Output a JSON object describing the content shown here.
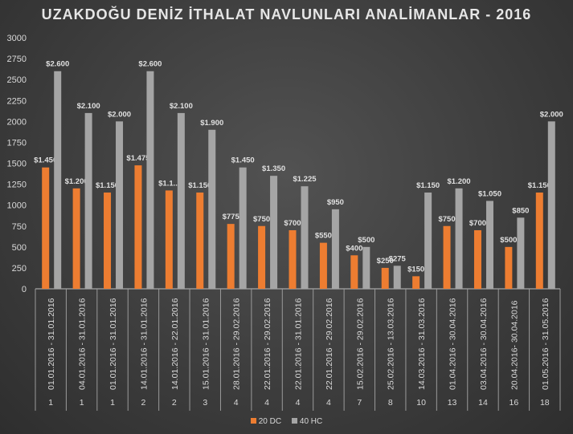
{
  "chart_data": {
    "type": "bar",
    "title": "UZAKDOĞU DENİZ İTHALAT NAVLUNLARI ANALİMANLAR - 2016",
    "ylim": [
      0,
      3000
    ],
    "yticks": [
      "0",
      "250",
      "500",
      "750",
      "1000",
      "1250",
      "1500",
      "1750",
      "2000",
      "2250",
      "2500",
      "2750",
      "3000"
    ],
    "categories": [
      "01.01.2016 - 31.01.2016",
      "04.01.2016 - 31.01.2016",
      "01.01.2016 - 31.01.2016",
      "14.01.2016 - 31.01.2016",
      "14.01.2016 - 22.01.2016",
      "15.01.2016 - 31.01.2016",
      "28.01.2016 - 29.02.2016",
      "22.01.2016 - 29.02.2016",
      "22.01.2016 - 31.01.2016",
      "22.01.2016 - 29.02.2016",
      "15.02.2016 - 29.02.2016",
      "25.02.2016 - 13.03.2016",
      "14.03.2016 - 31.03.2016",
      "01.04.2016 - 30.04.2016",
      "03.04.2016 - 30.04.2016",
      "20.04.2016- 30.04.2016",
      "01.05.2016 - 31.05.2016"
    ],
    "groups": [
      "1",
      "1",
      "1",
      "2",
      "2",
      "3",
      "4",
      "4",
      "4",
      "4",
      "7",
      "8",
      "10",
      "13",
      "14",
      "16",
      "18"
    ],
    "series": [
      {
        "name": "20 DC",
        "color": "#ed7d31",
        "values": [
          1450,
          1200,
          1150,
          1475,
          1175,
          1150,
          775,
          750,
          700,
          550,
          400,
          250,
          150,
          750,
          700,
          500,
          1150
        ],
        "labels": [
          "$1.450",
          "$1.200",
          "$1.150",
          "$1.475",
          "$1.1...",
          "$1.150",
          "$775",
          "$750",
          "$700",
          "$550",
          "$400",
          "$250",
          "$150",
          "$750",
          "$700",
          "$500",
          "$1.150"
        ]
      },
      {
        "name": "40 HC",
        "color": "#a5a5a5",
        "values": [
          2600,
          2100,
          2000,
          2600,
          2100,
          1900,
          1450,
          1350,
          1225,
          950,
          500,
          275,
          1150,
          1200,
          1050,
          850,
          2000
        ],
        "labels": [
          "$2.600",
          "$2.100",
          "$2.000",
          "$2.600",
          "$2.100",
          "$1.900",
          "$1.450",
          "$1.350",
          "$1.225",
          "$950",
          "$500",
          "$275",
          "$1.150",
          "$1.200",
          "$1.050",
          "$850",
          "$2.000"
        ]
      }
    ],
    "legend": "bottom"
  }
}
